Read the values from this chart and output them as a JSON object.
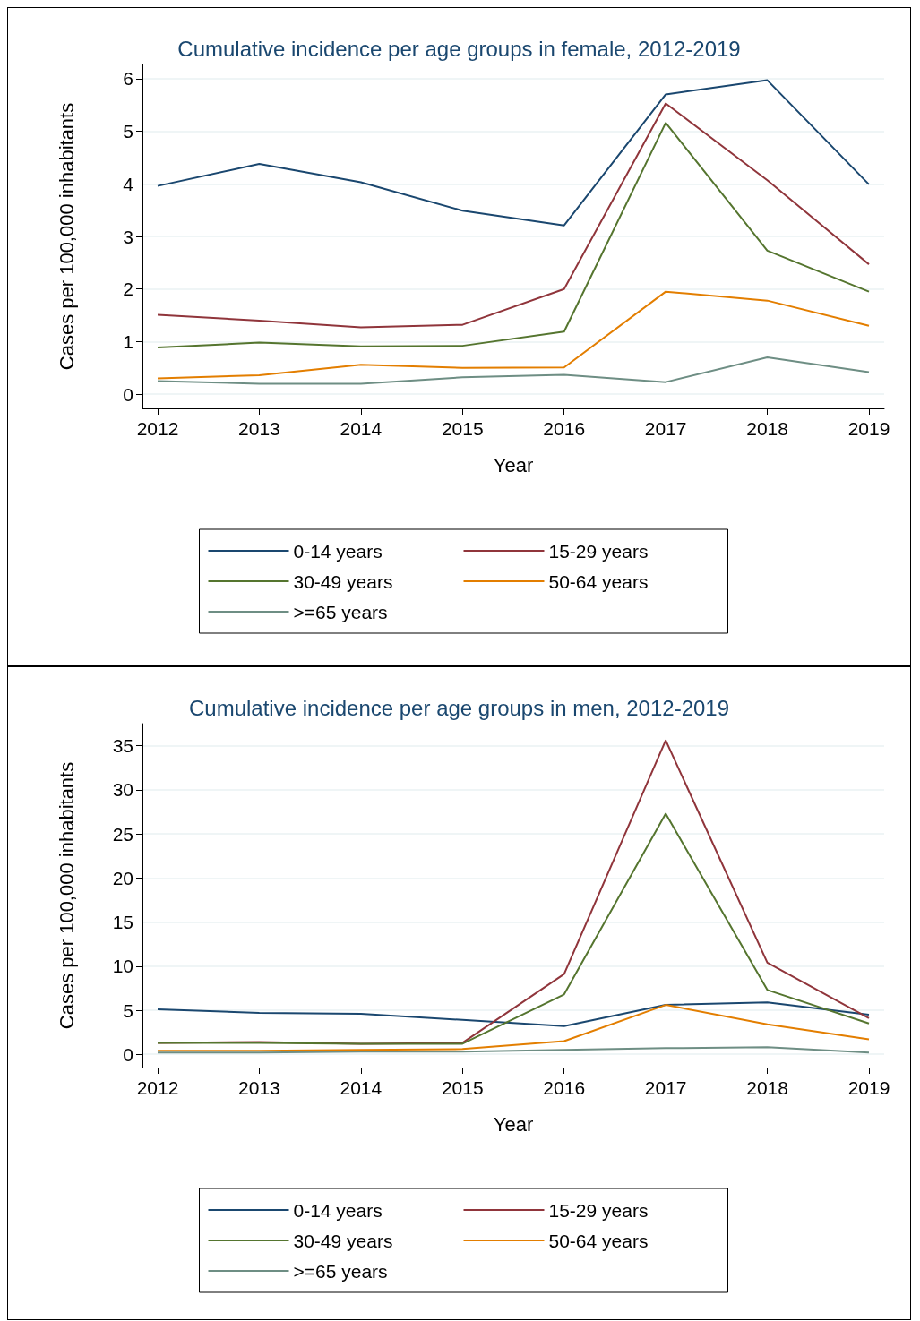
{
  "chart_data": [
    {
      "type": "line",
      "title": "Cumulative incidence per age groups in female, 2012-2019",
      "xlabel": "Year",
      "ylabel": "Cases per 100,000 inhabitants",
      "x": [
        2012,
        2013,
        2014,
        2015,
        2016,
        2017,
        2018,
        2019
      ],
      "xlim": [
        2011.85,
        2019.15
      ],
      "xticks": [
        2012,
        2013,
        2014,
        2015,
        2016,
        2017,
        2018,
        2019
      ],
      "ylim": [
        -0.27,
        6.27
      ],
      "yticks": [
        0,
        1,
        2,
        3,
        4,
        5,
        6
      ],
      "grid": "y",
      "legend": "bottom",
      "series": [
        {
          "name": "0-14 years",
          "color": "#1a476f",
          "values": [
            3.96,
            4.38,
            4.03,
            3.49,
            3.21,
            5.7,
            5.97,
            3.99
          ]
        },
        {
          "name": "15-29 years",
          "color": "#90353b",
          "values": [
            1.51,
            1.4,
            1.27,
            1.32,
            2.0,
            5.53,
            4.07,
            2.47
          ]
        },
        {
          "name": "30-49 years",
          "color": "#55752f",
          "values": [
            0.89,
            0.98,
            0.91,
            0.92,
            1.19,
            5.16,
            2.73,
            1.95
          ]
        },
        {
          "name": "50-64 years",
          "color": "#e37e00",
          "values": [
            0.3,
            0.36,
            0.56,
            0.5,
            0.51,
            1.95,
            1.78,
            1.3
          ]
        },
        {
          "name": ">=65 years",
          "color": "#6e8e84",
          "values": [
            0.25,
            0.2,
            0.2,
            0.32,
            0.37,
            0.23,
            0.7,
            0.42
          ]
        }
      ]
    },
    {
      "type": "line",
      "title": "Cumulative incidence per age groups in men, 2012-2019",
      "xlabel": "Year",
      "ylabel": "Cases per 100,000 inhabitants",
      "x": [
        2012,
        2013,
        2014,
        2015,
        2016,
        2017,
        2018,
        2019
      ],
      "xlim": [
        2011.85,
        2019.15
      ],
      "xticks": [
        2012,
        2013,
        2014,
        2015,
        2016,
        2017,
        2018,
        2019
      ],
      "ylim": [
        -1.5,
        37.5
      ],
      "yticks": [
        0,
        5,
        10,
        15,
        20,
        25,
        30,
        35
      ],
      "grid": "y",
      "legend": "bottom",
      "series": [
        {
          "name": "0-14 years",
          "color": "#1a476f",
          "values": [
            5.1,
            4.7,
            4.6,
            3.9,
            3.2,
            5.6,
            5.9,
            4.5
          ]
        },
        {
          "name": "15-29 years",
          "color": "#90353b",
          "values": [
            1.3,
            1.4,
            1.2,
            1.3,
            9.1,
            35.6,
            10.4,
            4.1
          ]
        },
        {
          "name": "30-49 years",
          "color": "#55752f",
          "values": [
            1.3,
            1.3,
            1.2,
            1.2,
            6.8,
            27.3,
            7.3,
            3.5
          ]
        },
        {
          "name": "50-64 years",
          "color": "#e37e00",
          "values": [
            0.4,
            0.4,
            0.5,
            0.6,
            1.5,
            5.6,
            3.4,
            1.7
          ]
        },
        {
          "name": ">=65 years",
          "color": "#6e8e84",
          "values": [
            0.2,
            0.2,
            0.3,
            0.3,
            0.5,
            0.7,
            0.8,
            0.2
          ]
        }
      ]
    }
  ]
}
